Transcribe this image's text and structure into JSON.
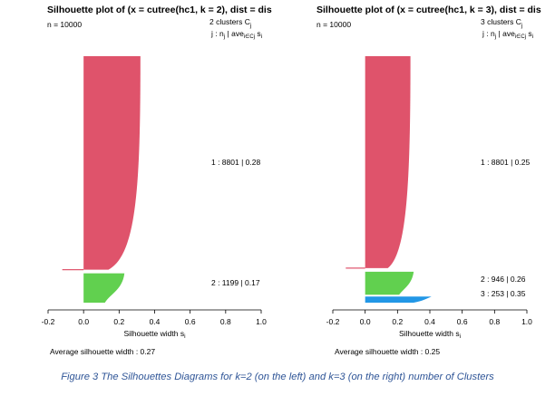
{
  "chart_data": [
    {
      "type": "bar",
      "title": "Silhouette plot of (x = cutree(hc1, k = 2), dist = dis",
      "n_label": "n = 10000",
      "header_line1": "2  clusters  C",
      "header_line1_sub": "j",
      "header_line2": "j :  n",
      "header_line2_sub1": "j",
      "header_line2_mid": " | ave",
      "header_line2_sub2": "i∈Cj",
      "header_line2_end": "  s",
      "header_line2_sub3": "i",
      "xlabel": "Silhouette width  s",
      "xlabel_sub": "i",
      "xlim": [
        -0.2,
        1.0
      ],
      "x_ticks": [
        "-0.2",
        "0.0",
        "0.2",
        "0.4",
        "0.6",
        "0.8",
        "1.0"
      ],
      "average_label": "Average silhouette width :  0.27",
      "clusters": [
        {
          "id": 1,
          "size": 8801,
          "avg_width": 0.28,
          "label": "1 :  8801  |  0.28",
          "color": "#df536b",
          "max_width": 0.32,
          "min_width": -0.12
        },
        {
          "id": 2,
          "size": 1199,
          "avg_width": 0.17,
          "label": "2 :  1199  |  0.17",
          "color": "#61d04f",
          "max_width": 0.23,
          "min_width": 0.0
        }
      ]
    },
    {
      "type": "bar",
      "title": "Silhouette plot of (x = cutree(hc1, k = 3), dist = dis",
      "n_label": "n = 10000",
      "header_line1": "3  clusters  C",
      "header_line1_sub": "j",
      "header_line2": "j :  n",
      "header_line2_sub1": "j",
      "header_line2_mid": " | ave",
      "header_line2_sub2": "i∈Cj",
      "header_line2_end": "  s",
      "header_line2_sub3": "i",
      "xlabel": "Silhouette width  s",
      "xlabel_sub": "i",
      "xlim": [
        -0.2,
        1.0
      ],
      "x_ticks": [
        "-0.2",
        "0.0",
        "0.2",
        "0.4",
        "0.6",
        "0.8",
        "1.0"
      ],
      "average_label": "Average silhouette width :  0.25",
      "clusters": [
        {
          "id": 1,
          "size": 8801,
          "avg_width": 0.25,
          "label": "1 :  8801  |  0.25",
          "color": "#df536b",
          "max_width": 0.28,
          "min_width": -0.12
        },
        {
          "id": 2,
          "size": 946,
          "avg_width": 0.26,
          "label": "2 :  946  |  0.26",
          "color": "#61d04f",
          "max_width": 0.3,
          "min_width": 0.0
        },
        {
          "id": 3,
          "size": 253,
          "avg_width": 0.35,
          "label": "3 :  253  |  0.35",
          "color": "#2297e6",
          "max_width": 0.41,
          "min_width": 0.0
        }
      ]
    }
  ],
  "caption": "Figure 3 The Silhouettes Diagrams for k=2 (on the left) and k=3 (on the right) number of Clusters"
}
